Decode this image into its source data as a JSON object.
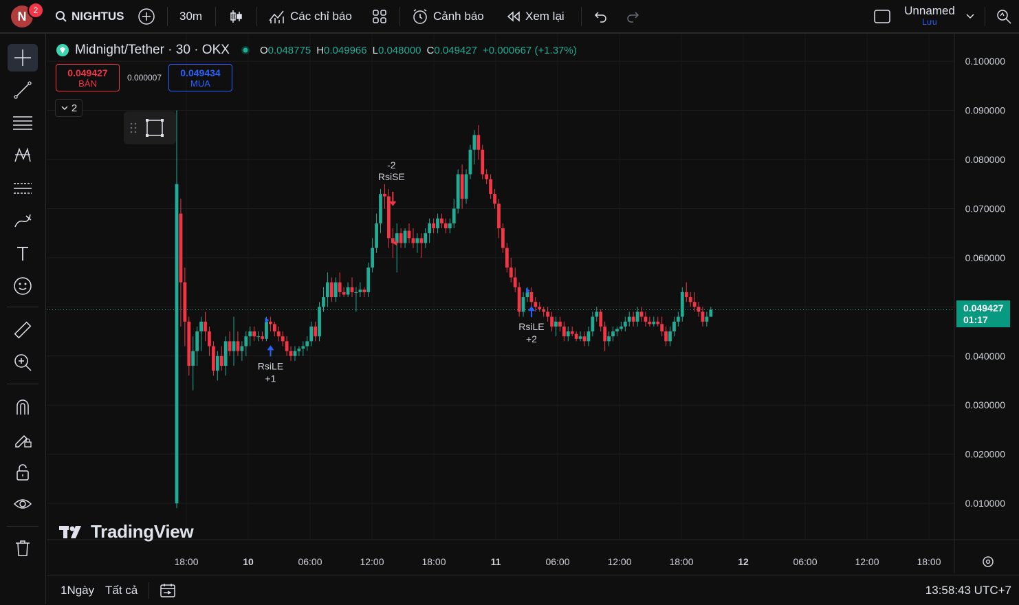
{
  "topbar": {
    "avatar_letter": "N",
    "notification_count": "2",
    "symbol_search": "NIGHTUS",
    "interval": "30m",
    "indicators_label": "Các chỉ báo",
    "alerts_label": "Cảnh báo",
    "replay_label": "Xem lại",
    "layout_name": "Unnamed",
    "save_label": "Lưu"
  },
  "legend": {
    "symbol": "Midnight/Tether · 30 · OKX",
    "open_label": "O",
    "open": "0.048775",
    "high_label": "H",
    "high": "0.049966",
    "low_label": "L",
    "low": "0.048000",
    "close_label": "C",
    "close": "0.049427",
    "change": "+0.000667 (+1.37%)"
  },
  "trade": {
    "sell_price": "0.049427",
    "sell_label": "BÁN",
    "spread": "0.000007",
    "buy_price": "0.049434",
    "buy_label": "MUA"
  },
  "indicator_toggle": {
    "count": "2"
  },
  "watermark": {
    "text": "TradingView"
  },
  "last_price": {
    "price": "0.049427",
    "countdown": "01:17"
  },
  "bottombar": {
    "range_1d": "1Ngày",
    "range_all": "Tất cả",
    "clock": "13:58:43 UTC+7"
  },
  "colors": {
    "up": "#22ab94",
    "down": "#f23645",
    "background": "#0f0f0f",
    "accent": "#2962ff"
  },
  "left_tools": [
    "crosshair-icon",
    "trend-line-icon",
    "fib-retracement-icon",
    "pattern-icon",
    "prediction-icon",
    "brush-icon",
    "text-icon",
    "emoji-icon",
    "ruler-icon",
    "zoom-in-icon",
    "magnet-icon",
    "lock-drawing-icon",
    "lock-icon",
    "eye-icon",
    "trash-icon"
  ],
  "chart_data": {
    "type": "candlestick",
    "title": "Midnight/Tether · 30 · OKX",
    "ylim": [
      0.004,
      0.1045
    ],
    "y_ticks": [
      "0.100000",
      "0.090000",
      "0.080000",
      "0.070000",
      "0.060000",
      "0.050000",
      "0.040000",
      "0.030000",
      "0.020000",
      "0.010000"
    ],
    "x_ticks": [
      "18:00",
      "10",
      "06:00",
      "12:00",
      "18:00",
      "11",
      "06:00",
      "12:00",
      "18:00",
      "12",
      "06:00",
      "12:00",
      "18:00"
    ],
    "signals": [
      {
        "label": "RsiLE",
        "qty": "+1",
        "side": "buy",
        "price": 0.042
      },
      {
        "label": "RsiSE",
        "qty": "-2",
        "side": "sell",
        "price": 0.072
      },
      {
        "label": "RsiLE",
        "qty": "+2",
        "side": "buy",
        "price": 0.048
      }
    ],
    "candles": [
      {
        "o": 0.01,
        "h": 0.09,
        "l": 0.009,
        "c": 0.075
      },
      {
        "o": 0.069,
        "h": 0.072,
        "l": 0.046,
        "c": 0.055
      },
      {
        "o": 0.055,
        "h": 0.058,
        "l": 0.042,
        "c": 0.047
      },
      {
        "o": 0.047,
        "h": 0.048,
        "l": 0.036,
        "c": 0.038
      },
      {
        "o": 0.038,
        "h": 0.044,
        "l": 0.033,
        "c": 0.041
      },
      {
        "o": 0.041,
        "h": 0.046,
        "l": 0.038,
        "c": 0.045
      },
      {
        "o": 0.045,
        "h": 0.048,
        "l": 0.041,
        "c": 0.047
      },
      {
        "o": 0.047,
        "h": 0.049,
        "l": 0.043,
        "c": 0.045
      },
      {
        "o": 0.045,
        "h": 0.046,
        "l": 0.04,
        "c": 0.042
      },
      {
        "o": 0.042,
        "h": 0.043,
        "l": 0.036,
        "c": 0.037
      },
      {
        "o": 0.037,
        "h": 0.041,
        "l": 0.035,
        "c": 0.04
      },
      {
        "o": 0.04,
        "h": 0.042,
        "l": 0.037,
        "c": 0.038
      },
      {
        "o": 0.038,
        "h": 0.044,
        "l": 0.036,
        "c": 0.043
      },
      {
        "o": 0.043,
        "h": 0.045,
        "l": 0.04,
        "c": 0.041
      },
      {
        "o": 0.041,
        "h": 0.048,
        "l": 0.038,
        "c": 0.043
      },
      {
        "o": 0.043,
        "h": 0.045,
        "l": 0.04,
        "c": 0.041
      },
      {
        "o": 0.041,
        "h": 0.043,
        "l": 0.039,
        "c": 0.042
      },
      {
        "o": 0.042,
        "h": 0.045,
        "l": 0.04,
        "c": 0.044
      },
      {
        "o": 0.044,
        "h": 0.046,
        "l": 0.042,
        "c": 0.045
      },
      {
        "o": 0.045,
        "h": 0.046,
        "l": 0.043,
        "c": 0.044
      },
      {
        "o": 0.044,
        "h": 0.045,
        "l": 0.043,
        "c": 0.044
      },
      {
        "o": 0.044,
        "h": 0.045,
        "l": 0.043,
        "c": 0.0435
      },
      {
        "o": 0.0435,
        "h": 0.048,
        "l": 0.043,
        "c": 0.047
      },
      {
        "o": 0.047,
        "h": 0.048,
        "l": 0.045,
        "c": 0.0465
      },
      {
        "o": 0.0465,
        "h": 0.047,
        "l": 0.044,
        "c": 0.045
      },
      {
        "o": 0.045,
        "h": 0.046,
        "l": 0.043,
        "c": 0.044
      },
      {
        "o": 0.044,
        "h": 0.045,
        "l": 0.042,
        "c": 0.043
      },
      {
        "o": 0.043,
        "h": 0.044,
        "l": 0.04,
        "c": 0.041
      },
      {
        "o": 0.041,
        "h": 0.042,
        "l": 0.039,
        "c": 0.04
      },
      {
        "o": 0.04,
        "h": 0.042,
        "l": 0.039,
        "c": 0.041
      },
      {
        "o": 0.041,
        "h": 0.042,
        "l": 0.04,
        "c": 0.0415
      },
      {
        "o": 0.0415,
        "h": 0.043,
        "l": 0.04,
        "c": 0.042
      },
      {
        "o": 0.042,
        "h": 0.044,
        "l": 0.041,
        "c": 0.043
      },
      {
        "o": 0.043,
        "h": 0.047,
        "l": 0.042,
        "c": 0.046
      },
      {
        "o": 0.046,
        "h": 0.047,
        "l": 0.043,
        "c": 0.044
      },
      {
        "o": 0.044,
        "h": 0.051,
        "l": 0.043,
        "c": 0.05
      },
      {
        "o": 0.05,
        "h": 0.054,
        "l": 0.049,
        "c": 0.052
      },
      {
        "o": 0.052,
        "h": 0.057,
        "l": 0.05,
        "c": 0.055
      },
      {
        "o": 0.055,
        "h": 0.056,
        "l": 0.051,
        "c": 0.052
      },
      {
        "o": 0.052,
        "h": 0.056,
        "l": 0.051,
        "c": 0.055
      },
      {
        "o": 0.055,
        "h": 0.057,
        "l": 0.052,
        "c": 0.053
      },
      {
        "o": 0.053,
        "h": 0.054,
        "l": 0.052,
        "c": 0.0525
      },
      {
        "o": 0.0525,
        "h": 0.055,
        "l": 0.052,
        "c": 0.054
      },
      {
        "o": 0.054,
        "h": 0.056,
        "l": 0.052,
        "c": 0.053
      },
      {
        "o": 0.053,
        "h": 0.054,
        "l": 0.049,
        "c": 0.053
      },
      {
        "o": 0.053,
        "h": 0.055,
        "l": 0.052,
        "c": 0.0535
      },
      {
        "o": 0.0535,
        "h": 0.054,
        "l": 0.052,
        "c": 0.053
      },
      {
        "o": 0.053,
        "h": 0.059,
        "l": 0.052,
        "c": 0.058
      },
      {
        "o": 0.058,
        "h": 0.064,
        "l": 0.057,
        "c": 0.062
      },
      {
        "o": 0.062,
        "h": 0.069,
        "l": 0.061,
        "c": 0.067
      },
      {
        "o": 0.067,
        "h": 0.074,
        "l": 0.065,
        "c": 0.073
      },
      {
        "o": 0.073,
        "h": 0.075,
        "l": 0.07,
        "c": 0.0725
      },
      {
        "o": 0.0725,
        "h": 0.074,
        "l": 0.062,
        "c": 0.064
      },
      {
        "o": 0.064,
        "h": 0.066,
        "l": 0.06,
        "c": 0.063
      },
      {
        "o": 0.063,
        "h": 0.067,
        "l": 0.057,
        "c": 0.065
      },
      {
        "o": 0.065,
        "h": 0.066,
        "l": 0.062,
        "c": 0.063
      },
      {
        "o": 0.063,
        "h": 0.066,
        "l": 0.062,
        "c": 0.0655
      },
      {
        "o": 0.0655,
        "h": 0.067,
        "l": 0.063,
        "c": 0.064
      },
      {
        "o": 0.064,
        "h": 0.066,
        "l": 0.062,
        "c": 0.063
      },
      {
        "o": 0.063,
        "h": 0.065,
        "l": 0.061,
        "c": 0.064
      },
      {
        "o": 0.064,
        "h": 0.065,
        "l": 0.06,
        "c": 0.063
      },
      {
        "o": 0.063,
        "h": 0.066,
        "l": 0.062,
        "c": 0.065
      },
      {
        "o": 0.065,
        "h": 0.068,
        "l": 0.063,
        "c": 0.067
      },
      {
        "o": 0.067,
        "h": 0.068,
        "l": 0.065,
        "c": 0.066
      },
      {
        "o": 0.066,
        "h": 0.069,
        "l": 0.065,
        "c": 0.068
      },
      {
        "o": 0.068,
        "h": 0.069,
        "l": 0.066,
        "c": 0.067
      },
      {
        "o": 0.067,
        "h": 0.068,
        "l": 0.065,
        "c": 0.066
      },
      {
        "o": 0.066,
        "h": 0.068,
        "l": 0.065,
        "c": 0.067
      },
      {
        "o": 0.067,
        "h": 0.072,
        "l": 0.066,
        "c": 0.07
      },
      {
        "o": 0.07,
        "h": 0.078,
        "l": 0.069,
        "c": 0.077
      },
      {
        "o": 0.077,
        "h": 0.079,
        "l": 0.07,
        "c": 0.072
      },
      {
        "o": 0.072,
        "h": 0.078,
        "l": 0.071,
        "c": 0.077
      },
      {
        "o": 0.077,
        "h": 0.083,
        "l": 0.076,
        "c": 0.082
      },
      {
        "o": 0.082,
        "h": 0.086,
        "l": 0.079,
        "c": 0.085
      },
      {
        "o": 0.085,
        "h": 0.087,
        "l": 0.08,
        "c": 0.082
      },
      {
        "o": 0.082,
        "h": 0.083,
        "l": 0.076,
        "c": 0.077
      },
      {
        "o": 0.077,
        "h": 0.078,
        "l": 0.075,
        "c": 0.076
      },
      {
        "o": 0.076,
        "h": 0.077,
        "l": 0.072,
        "c": 0.073
      },
      {
        "o": 0.073,
        "h": 0.074,
        "l": 0.07,
        "c": 0.071
      },
      {
        "o": 0.071,
        "h": 0.072,
        "l": 0.064,
        "c": 0.066
      },
      {
        "o": 0.066,
        "h": 0.067,
        "l": 0.061,
        "c": 0.062
      },
      {
        "o": 0.062,
        "h": 0.063,
        "l": 0.057,
        "c": 0.058
      },
      {
        "o": 0.058,
        "h": 0.06,
        "l": 0.055,
        "c": 0.056
      },
      {
        "o": 0.056,
        "h": 0.058,
        "l": 0.053,
        "c": 0.054
      },
      {
        "o": 0.054,
        "h": 0.055,
        "l": 0.048,
        "c": 0.049
      },
      {
        "o": 0.049,
        "h": 0.053,
        "l": 0.048,
        "c": 0.052
      },
      {
        "o": 0.052,
        "h": 0.054,
        "l": 0.051,
        "c": 0.053
      },
      {
        "o": 0.053,
        "h": 0.054,
        "l": 0.05,
        "c": 0.051
      },
      {
        "o": 0.051,
        "h": 0.052,
        "l": 0.049,
        "c": 0.05
      },
      {
        "o": 0.05,
        "h": 0.051,
        "l": 0.049,
        "c": 0.0495
      },
      {
        "o": 0.0495,
        "h": 0.05,
        "l": 0.048,
        "c": 0.049
      },
      {
        "o": 0.049,
        "h": 0.05,
        "l": 0.047,
        "c": 0.048
      },
      {
        "o": 0.048,
        "h": 0.049,
        "l": 0.045,
        "c": 0.046
      },
      {
        "o": 0.046,
        "h": 0.048,
        "l": 0.044,
        "c": 0.047
      },
      {
        "o": 0.047,
        "h": 0.048,
        "l": 0.045,
        "c": 0.046
      },
      {
        "o": 0.046,
        "h": 0.047,
        "l": 0.043,
        "c": 0.044
      },
      {
        "o": 0.044,
        "h": 0.046,
        "l": 0.043,
        "c": 0.045
      },
      {
        "o": 0.045,
        "h": 0.046,
        "l": 0.044,
        "c": 0.0445
      },
      {
        "o": 0.0445,
        "h": 0.045,
        "l": 0.043,
        "c": 0.0435
      },
      {
        "o": 0.0435,
        "h": 0.045,
        "l": 0.043,
        "c": 0.044
      },
      {
        "o": 0.044,
        "h": 0.045,
        "l": 0.042,
        "c": 0.043
      },
      {
        "o": 0.043,
        "h": 0.046,
        "l": 0.042,
        "c": 0.045
      },
      {
        "o": 0.045,
        "h": 0.049,
        "l": 0.044,
        "c": 0.048
      },
      {
        "o": 0.048,
        "h": 0.05,
        "l": 0.047,
        "c": 0.049
      },
      {
        "o": 0.049,
        "h": 0.0495,
        "l": 0.045,
        "c": 0.046
      },
      {
        "o": 0.046,
        "h": 0.047,
        "l": 0.041,
        "c": 0.043
      },
      {
        "o": 0.043,
        "h": 0.045,
        "l": 0.042,
        "c": 0.044
      },
      {
        "o": 0.044,
        "h": 0.046,
        "l": 0.043,
        "c": 0.045
      },
      {
        "o": 0.045,
        "h": 0.046,
        "l": 0.044,
        "c": 0.0455
      },
      {
        "o": 0.0455,
        "h": 0.047,
        "l": 0.045,
        "c": 0.046
      },
      {
        "o": 0.046,
        "h": 0.048,
        "l": 0.045,
        "c": 0.047
      },
      {
        "o": 0.047,
        "h": 0.049,
        "l": 0.046,
        "c": 0.048
      },
      {
        "o": 0.048,
        "h": 0.049,
        "l": 0.046,
        "c": 0.047
      },
      {
        "o": 0.047,
        "h": 0.05,
        "l": 0.046,
        "c": 0.049
      },
      {
        "o": 0.049,
        "h": 0.05,
        "l": 0.047,
        "c": 0.048
      },
      {
        "o": 0.048,
        "h": 0.049,
        "l": 0.046,
        "c": 0.047
      },
      {
        "o": 0.047,
        "h": 0.048,
        "l": 0.046,
        "c": 0.0465
      },
      {
        "o": 0.0465,
        "h": 0.048,
        "l": 0.046,
        "c": 0.047
      },
      {
        "o": 0.047,
        "h": 0.048,
        "l": 0.046,
        "c": 0.0465
      },
      {
        "o": 0.0465,
        "h": 0.048,
        "l": 0.044,
        "c": 0.045
      },
      {
        "o": 0.045,
        "h": 0.046,
        "l": 0.042,
        "c": 0.043
      },
      {
        "o": 0.043,
        "h": 0.046,
        "l": 0.042,
        "c": 0.045
      },
      {
        "o": 0.045,
        "h": 0.048,
        "l": 0.044,
        "c": 0.047
      },
      {
        "o": 0.047,
        "h": 0.049,
        "l": 0.046,
        "c": 0.048
      },
      {
        "o": 0.048,
        "h": 0.054,
        "l": 0.047,
        "c": 0.053
      },
      {
        "o": 0.053,
        "h": 0.055,
        "l": 0.051,
        "c": 0.052
      },
      {
        "o": 0.052,
        "h": 0.053,
        "l": 0.05,
        "c": 0.051
      },
      {
        "o": 0.051,
        "h": 0.053,
        "l": 0.049,
        "c": 0.05
      },
      {
        "o": 0.05,
        "h": 0.051,
        "l": 0.048,
        "c": 0.049
      },
      {
        "o": 0.049,
        "h": 0.05,
        "l": 0.046,
        "c": 0.047
      },
      {
        "o": 0.047,
        "h": 0.049,
        "l": 0.046,
        "c": 0.048
      },
      {
        "o": 0.048,
        "h": 0.05,
        "l": 0.048,
        "c": 0.049427
      }
    ]
  }
}
